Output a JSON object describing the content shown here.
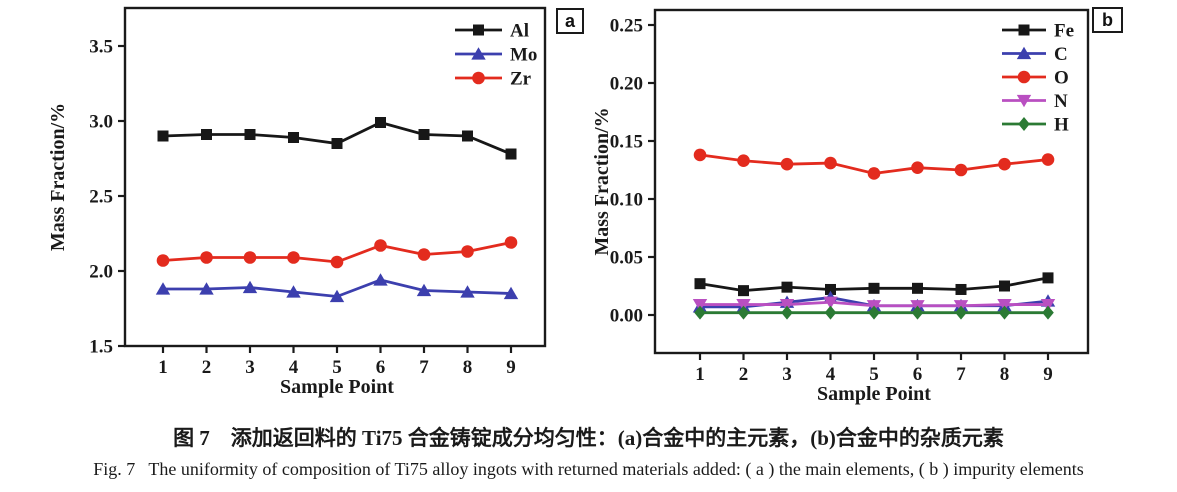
{
  "figure": {
    "captions": {
      "zh": "图 7　添加返回料的 Ti75 合金铸锭成分均匀性：(a)合金中的主元素，(b)合金中的杂质元素",
      "en": "Fig. 7   The uniformity of composition of Ti75 alloy ingots with returned materials added: ( a ) the main elements, ( b ) impurity elements"
    }
  },
  "chart_data": [
    {
      "type": "line",
      "panel_label": "a",
      "xlabel": "Sample Point",
      "ylabel": "Mass Fraction/%",
      "x": [
        1,
        2,
        3,
        4,
        5,
        6,
        7,
        8,
        9
      ],
      "xtick_labels": [
        "1",
        "2",
        "3",
        "4",
        "5",
        "6",
        "7",
        "8",
        "9"
      ],
      "yticks": [
        1.5,
        2.0,
        2.5,
        3.0,
        3.5
      ],
      "ytick_labels": [
        "1.5",
        "2.0",
        "2.5",
        "3.0",
        "3.5"
      ],
      "ylim": [
        1.5,
        3.75
      ],
      "grid": false,
      "legend_position": "top-right-inside",
      "series": [
        {
          "name": "Al",
          "marker": "square",
          "color": "#171717",
          "values": [
            2.9,
            2.91,
            2.91,
            2.89,
            2.85,
            2.99,
            2.91,
            2.9,
            2.78
          ]
        },
        {
          "name": "Mo",
          "marker": "triangle-up",
          "color": "#3c3fae",
          "values": [
            1.88,
            1.88,
            1.89,
            1.86,
            1.83,
            1.94,
            1.87,
            1.86,
            1.85
          ]
        },
        {
          "name": "Zr",
          "marker": "circle",
          "color": "#e32b1e",
          "values": [
            2.07,
            2.09,
            2.09,
            2.09,
            2.06,
            2.17,
            2.11,
            2.13,
            2.19
          ]
        }
      ]
    },
    {
      "type": "line",
      "panel_label": "b",
      "xlabel": "Sample Point",
      "ylabel": "Mass Fraction/%",
      "x": [
        1,
        2,
        3,
        4,
        5,
        6,
        7,
        8,
        9
      ],
      "xtick_labels": [
        "1",
        "2",
        "3",
        "4",
        "5",
        "6",
        "7",
        "8",
        "9"
      ],
      "yticks": [
        0.0,
        0.05,
        0.1,
        0.15,
        0.2,
        0.25
      ],
      "ytick_labels": [
        "0.00",
        "0.05",
        "0.10",
        "0.15",
        "0.20",
        "0.25"
      ],
      "ylim": [
        -0.03,
        0.263
      ],
      "grid": false,
      "legend_position": "top-right-inside",
      "series": [
        {
          "name": "Fe",
          "marker": "square",
          "color": "#171717",
          "values": [
            0.027,
            0.021,
            0.024,
            0.022,
            0.023,
            0.023,
            0.022,
            0.025,
            0.032
          ]
        },
        {
          "name": "C",
          "marker": "triangle-up",
          "color": "#3c3fae",
          "values": [
            0.007,
            0.007,
            0.011,
            0.015,
            0.008,
            0.008,
            0.008,
            0.008,
            0.012
          ]
        },
        {
          "name": "O",
          "marker": "circle",
          "color": "#e32b1e",
          "values": [
            0.138,
            0.133,
            0.13,
            0.131,
            0.122,
            0.127,
            0.125,
            0.13,
            0.134
          ]
        },
        {
          "name": "N",
          "marker": "triangle-down",
          "color": "#b94fc1",
          "values": [
            0.009,
            0.009,
            0.009,
            0.011,
            0.008,
            0.008,
            0.008,
            0.009,
            0.009
          ]
        },
        {
          "name": "H",
          "marker": "diamond",
          "color": "#2b7a34",
          "values": [
            0.002,
            0.002,
            0.002,
            0.002,
            0.002,
            0.002,
            0.002,
            0.002,
            0.002
          ]
        }
      ]
    }
  ]
}
